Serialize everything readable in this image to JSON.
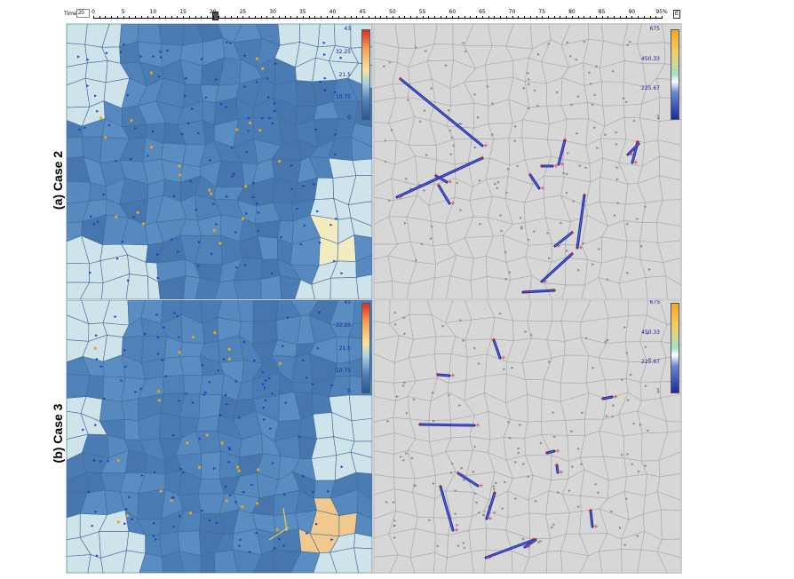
{
  "toolbar": {
    "time_label": "Time",
    "time_value": "20",
    "ruler_ticks": [
      "0",
      "5",
      "10",
      "15",
      "20",
      "25",
      "30",
      "35",
      "40",
      "45",
      "50",
      "55",
      "60",
      "65",
      "70",
      "75",
      "80",
      "85",
      "90",
      "95%"
    ],
    "end_button_label": "E"
  },
  "rows": [
    {
      "label": "(a) Case 2"
    },
    {
      "label": "(b) Case 3"
    }
  ],
  "panels": {
    "a_left": {
      "legend": [
        "43",
        "32.25",
        "21.5",
        "10.75",
        "0"
      ]
    },
    "a_right": {
      "legend": [
        "675",
        "450.33",
        "225.67",
        "1"
      ]
    },
    "b_left": {
      "legend": [
        "43",
        "32.25",
        "21.5",
        "10.75",
        "0"
      ]
    },
    "b_right": {
      "legend": [
        "675",
        "450.33",
        "225.67",
        "1"
      ]
    }
  },
  "colors": {
    "map_blue": "#4f82b8",
    "map_pale": "#cfe3ea",
    "map_yellow": "#f2ecc0",
    "map_orange": "#f2c98d",
    "grey_bg": "#d7d7d7",
    "flow_line": "#1f2aa8",
    "marker_red": "#e02020",
    "dot_orange": "#f0a020"
  }
}
